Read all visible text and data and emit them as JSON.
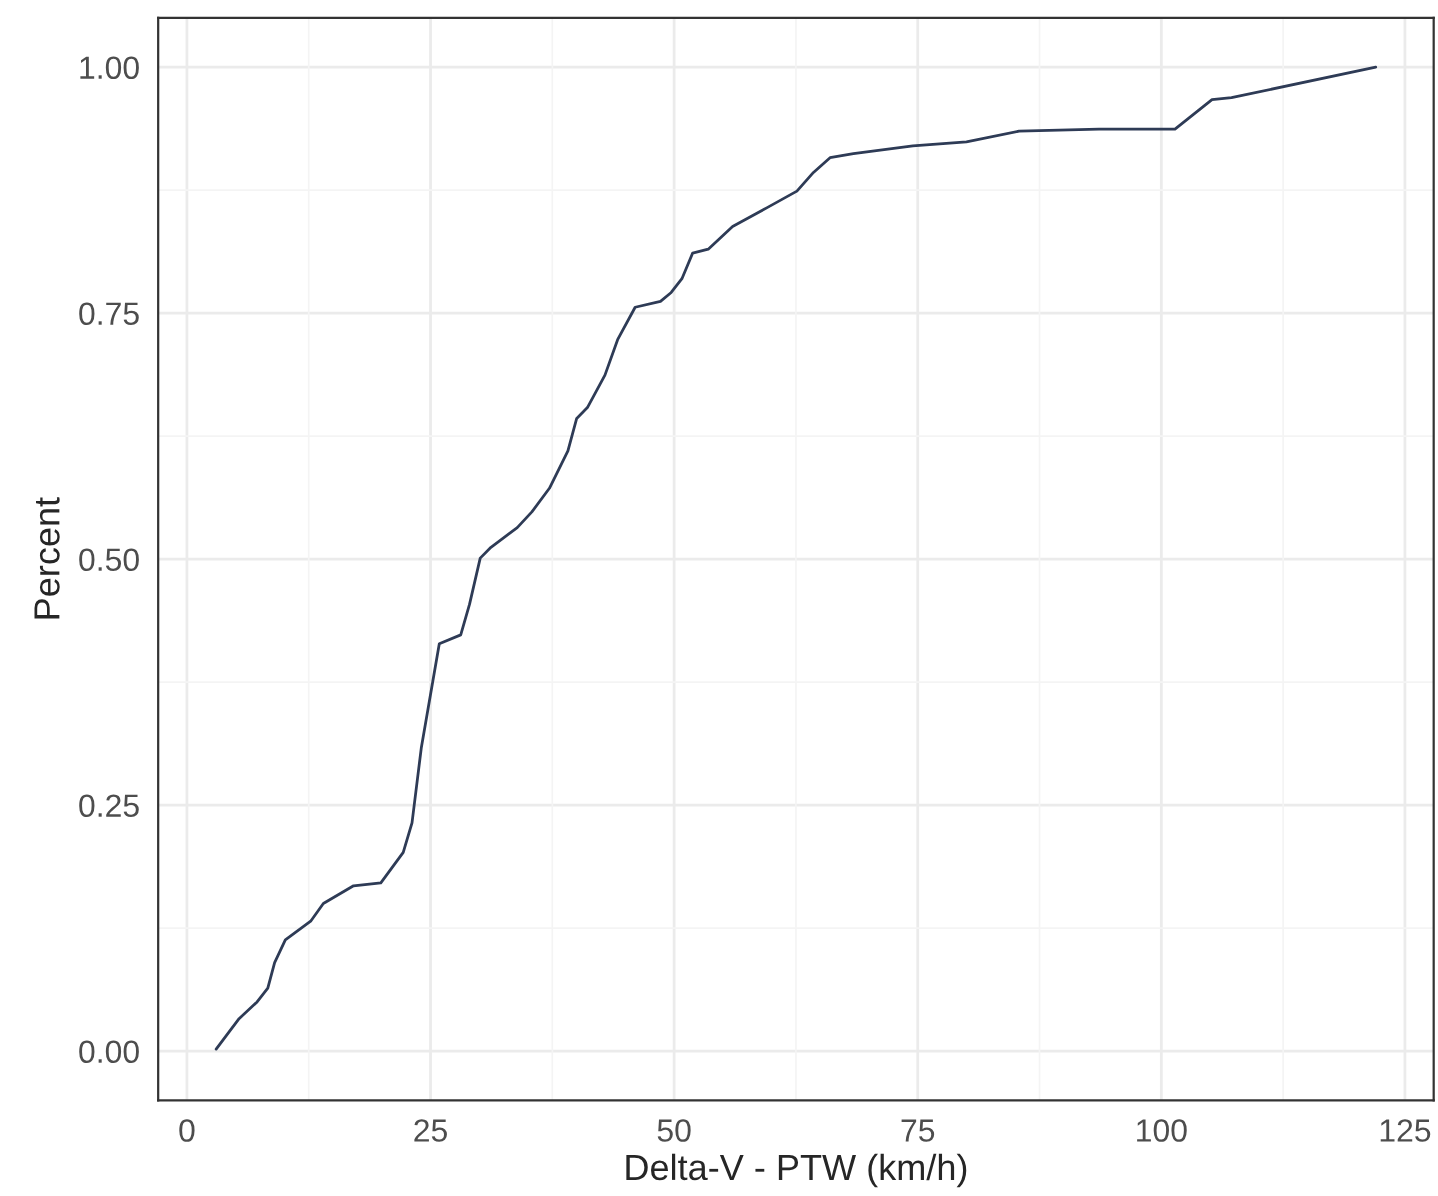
{
  "chart_data": {
    "type": "line",
    "xlabel": "Delta-V - PTW (km/h)",
    "ylabel": "Percent",
    "x": [
      3.0,
      5.35,
      7.2,
      8.3,
      9.0,
      10.1,
      12.7,
      14.0,
      17.1,
      19.9,
      22.2,
      23.1,
      24.05,
      25.9,
      28.1,
      29.0,
      30.1,
      31.2,
      33.9,
      35.4,
      37.2,
      39.1,
      40.0,
      41.1,
      42.9,
      44.2,
      46.0,
      48.6,
      49.7,
      50.8,
      51.9,
      53.5,
      56.0,
      59.5,
      62.6,
      64.3,
      66.0,
      68.4,
      74.5,
      80.0,
      85.4,
      93.6,
      101.4,
      105.2,
      107.2,
      122.0
    ],
    "series": [
      {
        "color": "#2e3b56",
        "values": [
          0.002,
          0.033,
          0.05,
          0.064,
          0.09,
          0.113,
          0.132,
          0.15,
          0.168,
          0.171,
          0.202,
          0.232,
          0.308,
          0.414,
          0.423,
          0.454,
          0.501,
          0.512,
          0.532,
          0.548,
          0.572,
          0.61,
          0.643,
          0.654,
          0.687,
          0.723,
          0.756,
          0.762,
          0.771,
          0.785,
          0.811,
          0.815,
          0.838,
          0.857,
          0.874,
          0.893,
          0.908,
          0.912,
          0.92,
          0.924,
          0.935,
          0.937,
          0.937,
          0.967,
          0.969,
          1.0
        ]
      }
    ],
    "xlim": [
      -2.95,
      127.95
    ],
    "ylim": [
      -0.05,
      1.05
    ],
    "xticks": [
      0,
      25,
      50,
      75,
      100,
      125
    ],
    "yticks": [
      {
        "value": 0,
        "label": "0.00"
      },
      {
        "value": 0.25,
        "label": "0.25"
      },
      {
        "value": 0.5,
        "label": "0.50"
      },
      {
        "value": 0.75,
        "label": "0.75"
      },
      {
        "value": 1,
        "label": "1.00"
      }
    ],
    "grid": true,
    "marker": "none",
    "line_style": "solid"
  }
}
